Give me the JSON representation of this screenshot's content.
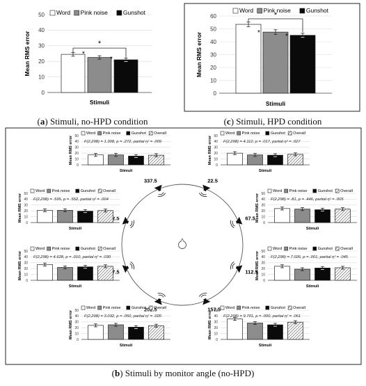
{
  "colors": {
    "word": "#ffffff",
    "pink": "#8c8c8c",
    "gunshot": "#0a0a0a",
    "stroke": "#222222",
    "grid": "#d9d9d9"
  },
  "legend": {
    "word": "Word",
    "pink": "Pink noise",
    "gunshot": "Gunshot",
    "overall": "Overall"
  },
  "captions": {
    "a_letter": "a",
    "a_text": ") Stimuli, no-HPD condition",
    "c_letter": "c",
    "c_text": ") Stimuli, HPD condition",
    "b_letter": "b",
    "b_text": ") Stimuli by monitor angle (no-HPD)"
  },
  "chart_data": [
    {
      "id": "a",
      "type": "bar",
      "title": "",
      "xlabel": "Stimuli",
      "ylabel": "Mean RMS error",
      "ylim": [
        0,
        50
      ],
      "yticks": [
        "0",
        "10",
        "20",
        "30",
        "40",
        "50"
      ],
      "series": [
        {
          "name": "Word",
          "values": [
            24.5
          ],
          "err": [
            1.2
          ]
        },
        {
          "name": "Pink noise",
          "values": [
            22.5
          ],
          "err": [
            1.1
          ]
        },
        {
          "name": "Gunshot",
          "values": [
            21.0
          ],
          "err": [
            1.1
          ]
        }
      ],
      "annotations": [
        "*",
        "*",
        "*"
      ]
    },
    {
      "id": "c",
      "type": "bar",
      "title": "",
      "xlabel": "Stimuli",
      "ylabel": "Mean RMS error",
      "ylim": [
        0,
        60
      ],
      "yticks": [
        "0",
        "10",
        "20",
        "30",
        "40",
        "50",
        "60"
      ],
      "series": [
        {
          "name": "Word",
          "values": [
            53.5
          ],
          "err": [
            1.8
          ]
        },
        {
          "name": "Pink noise",
          "values": [
            47.5
          ],
          "err": [
            1.8
          ]
        },
        {
          "name": "Gunshot",
          "values": [
            45.0
          ],
          "err": [
            1.6
          ]
        }
      ],
      "annotations": [
        "*",
        "*",
        "*"
      ]
    },
    {
      "id": "b1",
      "type": "bar",
      "xlabel": "Stimuli",
      "ylabel": "Mean RMS error",
      "ylim": [
        0,
        50
      ],
      "yticks": [
        "0",
        "10",
        "20",
        "30",
        "40",
        "50"
      ],
      "stats": "F(2,298) = 1.308, p = .272, partial η² = .009",
      "series": [
        {
          "name": "Word",
          "values": [
            17
          ]
        },
        {
          "name": "Pink noise",
          "values": [
            17
          ]
        },
        {
          "name": "Gunshot",
          "values": [
            15
          ]
        },
        {
          "name": "Overall",
          "values": [
            16.5
          ]
        }
      ]
    },
    {
      "id": "b2",
      "type": "bar",
      "xlabel": "Stimuli",
      "ylabel": "Mean RMS error",
      "ylim": [
        0,
        50
      ],
      "yticks": [
        "0",
        "10",
        "20",
        "30",
        "40",
        "50"
      ],
      "stats": "F(2,298) = 4.112, p = .017, partial η² = .027",
      "series": [
        {
          "name": "Word",
          "values": [
            20
          ]
        },
        {
          "name": "Pink noise",
          "values": [
            17
          ]
        },
        {
          "name": "Gunshot",
          "values": [
            16.5
          ]
        },
        {
          "name": "Overall",
          "values": [
            18
          ]
        }
      ]
    },
    {
      "id": "b3",
      "type": "bar",
      "xlabel": "Stimuli",
      "ylabel": "Mean RMS error",
      "ylim": [
        0,
        50
      ],
      "yticks": [
        "0",
        "10",
        "20",
        "30",
        "40",
        "50"
      ],
      "stats": "F(2,298) = .595, p = .552, partial η² = .004",
      "series": [
        {
          "name": "Word",
          "values": [
            21
          ]
        },
        {
          "name": "Pink noise",
          "values": [
            21
          ]
        },
        {
          "name": "Gunshot",
          "values": [
            19.5
          ]
        },
        {
          "name": "Overall",
          "values": [
            20.5
          ]
        }
      ]
    },
    {
      "id": "b4",
      "type": "bar",
      "xlabel": "Stimuli",
      "ylabel": "Mean RMS error",
      "ylim": [
        0,
        50
      ],
      "yticks": [
        "0",
        "10",
        "20",
        "30",
        "40",
        "50"
      ],
      "stats": "F(2,298) = .81, p = .446, partial η² = .005",
      "series": [
        {
          "name": "Word",
          "values": [
            24
          ]
        },
        {
          "name": "Pink noise",
          "values": [
            23
          ]
        },
        {
          "name": "Gunshot",
          "values": [
            22
          ]
        },
        {
          "name": "Overall",
          "values": [
            23
          ]
        }
      ]
    },
    {
      "id": "b5",
      "type": "bar",
      "xlabel": "Stimuli",
      "ylabel": "Mean RMS error",
      "ylim": [
        0,
        50
      ],
      "yticks": [
        "0",
        "10",
        "20",
        "30",
        "40",
        "50"
      ],
      "stats": "F(2,298) = 4.628, p = .010, partial η² = .030",
      "series": [
        {
          "name": "Word",
          "values": [
            27
          ]
        },
        {
          "name": "Pink noise",
          "values": [
            22
          ]
        },
        {
          "name": "Gunshot",
          "values": [
            23
          ]
        },
        {
          "name": "Overall",
          "values": [
            24
          ]
        }
      ]
    },
    {
      "id": "b6",
      "type": "bar",
      "xlabel": "Stimuli",
      "ylabel": "Mean RMS error",
      "ylim": [
        0,
        50
      ],
      "yticks": [
        "0",
        "10",
        "20",
        "30",
        "40",
        "50"
      ],
      "stats": "F(2,298) = 7.026, p = .001, partial η² = .045",
      "series": [
        {
          "name": "Word",
          "values": [
            24
          ]
        },
        {
          "name": "Pink noise",
          "values": [
            19
          ]
        },
        {
          "name": "Gunshot",
          "values": [
            21
          ]
        },
        {
          "name": "Overall",
          "values": [
            21.5
          ]
        }
      ]
    },
    {
      "id": "b7",
      "type": "bar",
      "xlabel": "Stimuli",
      "ylabel": "Mean RMS error",
      "ylim": [
        0,
        50
      ],
      "yticks": [
        "0",
        "10",
        "20",
        "30",
        "40",
        "50"
      ],
      "stats": "F(2,298) = 3.032, p = .050, partial η² = .020",
      "series": [
        {
          "name": "Word",
          "values": [
            24
          ]
        },
        {
          "name": "Pink noise",
          "values": [
            25
          ]
        },
        {
          "name": "Gunshot",
          "values": [
            21
          ]
        },
        {
          "name": "Overall",
          "values": [
            23.5
          ]
        }
      ]
    },
    {
      "id": "b8",
      "type": "bar",
      "xlabel": "Stimuli",
      "ylabel": "Mean RMS error",
      "ylim": [
        0,
        50
      ],
      "yticks": [
        "0",
        "10",
        "20",
        "30",
        "40",
        "50"
      ],
      "stats": "F(2,298) = 9.701, p = .000, partial η² = .061",
      "series": [
        {
          "name": "Word",
          "values": [
            35
          ]
        },
        {
          "name": "Pink noise",
          "values": [
            28
          ]
        },
        {
          "name": "Gunshot",
          "values": [
            25
          ]
        },
        {
          "name": "Overall",
          "values": [
            29.5
          ]
        }
      ]
    }
  ],
  "angles": [
    "337.5",
    "22.5",
    "67.5",
    "112.5",
    "157.5",
    "202.5",
    "247.5",
    "292.5"
  ]
}
